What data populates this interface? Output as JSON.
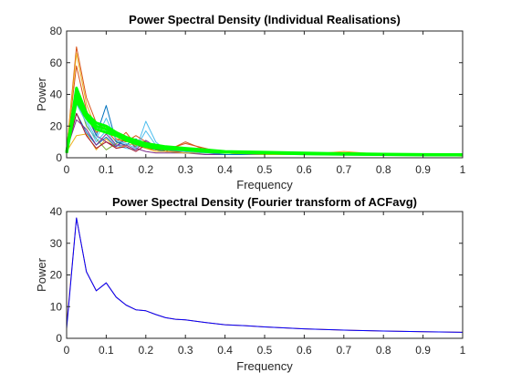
{
  "chart_data": [
    {
      "type": "line",
      "title": "Power Spectral Density (Individual Realisations)",
      "xlabel": "Frequency",
      "ylabel": "Power",
      "xlim": [
        0,
        1
      ],
      "ylim": [
        0,
        80
      ],
      "xticks": [
        "0",
        "0.1",
        "0.2",
        "0.3",
        "0.4",
        "0.5",
        "0.6",
        "0.7",
        "0.8",
        "0.9",
        "1"
      ],
      "yticks": [
        "0",
        "20",
        "40",
        "60",
        "80"
      ],
      "grid": false,
      "x": [
        0.0,
        0.025,
        0.05,
        0.075,
        0.1,
        0.125,
        0.15,
        0.175,
        0.2,
        0.225,
        0.25,
        0.3,
        0.35,
        0.4,
        0.5,
        0.6,
        0.7,
        0.8,
        0.9,
        1.0
      ],
      "series": [
        {
          "color": "#0072BD",
          "values": [
            4,
            28,
            16,
            8,
            13,
            7,
            12,
            8,
            10,
            7,
            5,
            4,
            3,
            3,
            4,
            2,
            2,
            2,
            2,
            2
          ]
        },
        {
          "color": "#D95319",
          "values": [
            5,
            70,
            38,
            22,
            18,
            10,
            16,
            8,
            6,
            5,
            4,
            10,
            5,
            3,
            2,
            3,
            2,
            2,
            2,
            2
          ]
        },
        {
          "color": "#EDB120",
          "values": [
            4,
            14,
            15,
            5,
            12,
            6,
            8,
            9,
            7,
            5,
            4,
            3,
            3,
            3,
            3,
            2,
            4,
            2,
            2,
            1
          ]
        },
        {
          "color": "#7E2F8E",
          "values": [
            6,
            37,
            27,
            14,
            10,
            7,
            13,
            6,
            4,
            3,
            3,
            3,
            2,
            2,
            2,
            2,
            2,
            2,
            2,
            2
          ]
        },
        {
          "color": "#77AC30",
          "values": [
            5,
            40,
            20,
            12,
            5,
            9,
            12,
            7,
            9,
            5,
            7,
            6,
            4,
            3,
            3,
            3,
            3,
            2,
            2,
            2
          ]
        },
        {
          "color": "#4DBEEE",
          "values": [
            5,
            34,
            22,
            10,
            17,
            8,
            6,
            5,
            23,
            10,
            5,
            5,
            4,
            3,
            3,
            3,
            2,
            2,
            2,
            2
          ]
        },
        {
          "color": "#A2142F",
          "values": [
            4,
            28,
            14,
            6,
            10,
            6,
            7,
            4,
            8,
            7,
            4,
            4,
            3,
            3,
            2,
            2,
            2,
            2,
            2,
            2
          ]
        },
        {
          "color": "#0072BD",
          "values": [
            3,
            34,
            30,
            14,
            33,
            10,
            8,
            12,
            7,
            5,
            4,
            3,
            3,
            2,
            2,
            2,
            2,
            2,
            2,
            2
          ]
        },
        {
          "color": "#D95319",
          "values": [
            6,
            58,
            30,
            16,
            20,
            12,
            10,
            14,
            10,
            5,
            5,
            9,
            6,
            3,
            3,
            3,
            2,
            2,
            2,
            2
          ]
        },
        {
          "color": "#EDB120",
          "values": [
            5,
            66,
            34,
            18,
            16,
            14,
            12,
            9,
            6,
            4,
            4,
            3,
            3,
            3,
            2,
            2,
            2,
            2,
            2,
            2
          ]
        },
        {
          "color": "#7E2F8E",
          "values": [
            5,
            24,
            18,
            8,
            15,
            8,
            8,
            5,
            11,
            7,
            5,
            4,
            3,
            3,
            3,
            2,
            2,
            2,
            2,
            2
          ]
        },
        {
          "color": "#4DBEEE",
          "values": [
            4,
            38,
            24,
            12,
            25,
            11,
            9,
            6,
            17,
            8,
            5,
            4,
            3,
            3,
            3,
            2,
            2,
            2,
            2,
            2
          ]
        },
        {
          "color": "#00FF00",
          "width": 3,
          "values": [
            3,
            44,
            28,
            22,
            20,
            16,
            13,
            11,
            9,
            8,
            7,
            6,
            5,
            4,
            3.5,
            3,
            2.6,
            2.3,
            2.1,
            2.0
          ]
        },
        {
          "color": "#00FF00",
          "width": 3,
          "values": [
            4,
            40,
            26,
            20,
            18,
            15,
            12,
            10,
            8,
            7,
            6,
            5,
            4,
            3.5,
            3,
            2.6,
            2.3,
            2.0,
            1.9,
            1.8
          ]
        },
        {
          "color": "#00FF00",
          "width": 3,
          "values": [
            3,
            36,
            25,
            18,
            16,
            14,
            11,
            9,
            7,
            6,
            5.5,
            5,
            4,
            3.5,
            3,
            2.5,
            2.2,
            2.0,
            1.8,
            1.7
          ]
        }
      ]
    },
    {
      "type": "line",
      "title": "Power Spectral Density (Fourier transform of ACFavg)",
      "xlabel": "Frequency",
      "ylabel": "Power",
      "xlim": [
        0,
        1
      ],
      "ylim": [
        0,
        40
      ],
      "xticks": [
        "0",
        "0.1",
        "0.2",
        "0.3",
        "0.4",
        "0.5",
        "0.6",
        "0.7",
        "0.8",
        "0.9",
        "1"
      ],
      "yticks": [
        "0",
        "10",
        "20",
        "30",
        "40"
      ],
      "grid": false,
      "x": [
        0.0,
        0.025,
        0.05,
        0.075,
        0.1,
        0.125,
        0.15,
        0.175,
        0.2,
        0.225,
        0.25,
        0.275,
        0.3,
        0.35,
        0.4,
        0.45,
        0.5,
        0.6,
        0.7,
        0.8,
        0.9,
        1.0
      ],
      "series": [
        {
          "color": "#D95319",
          "values": [
            4,
            38,
            21,
            15,
            17.5,
            13,
            10.5,
            9,
            8.7,
            7.5,
            6.5,
            6,
            5.8,
            5,
            4.3,
            4,
            3.6,
            3,
            2.6,
            2.3,
            2.1,
            1.9
          ]
        },
        {
          "color": "#0000FF",
          "values": [
            3,
            38,
            21,
            15,
            17.5,
            13,
            10.5,
            9,
            8.7,
            7.5,
            6.5,
            6,
            5.8,
            5,
            4.3,
            4,
            3.6,
            3,
            2.6,
            2.3,
            2.1,
            1.9
          ]
        }
      ]
    }
  ]
}
